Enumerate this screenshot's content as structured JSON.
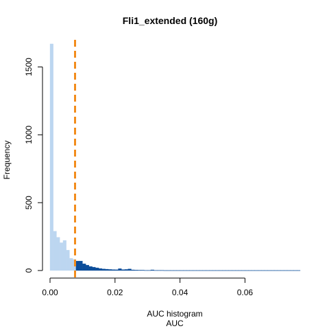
{
  "chart_data": {
    "type": "bar",
    "title": "Fli1_extended (160g)",
    "xlabel": "AUC",
    "xsublabel": "AUC histogram",
    "ylabel": "Frequency",
    "xlim": [
      0,
      0.077
    ],
    "ylim": [
      0,
      1700
    ],
    "x_ticks": [
      0.0,
      0.02,
      0.04,
      0.06
    ],
    "x_tick_labels": [
      "0.00",
      "0.02",
      "0.04",
      "0.06"
    ],
    "y_ticks": [
      0,
      500,
      1000,
      1500
    ],
    "y_tick_labels": [
      "0",
      "500",
      "1000",
      "1500"
    ],
    "bin_width": 0.001,
    "threshold": 0.0077,
    "values": [
      1670,
      290,
      245,
      205,
      222,
      150,
      90,
      82,
      70,
      70,
      50,
      40,
      30,
      25,
      20,
      15,
      12,
      10,
      8,
      7,
      6,
      14,
      7,
      8,
      12,
      5,
      4,
      3,
      3,
      2,
      2,
      5,
      2,
      2,
      2,
      1,
      1,
      1,
      1,
      1,
      1,
      1,
      1,
      1,
      1,
      1,
      1,
      1,
      1,
      1,
      1,
      1,
      1,
      1,
      1,
      1,
      1,
      1,
      1,
      1,
      1,
      1,
      1,
      1,
      1,
      1,
      1,
      1,
      1,
      1,
      1,
      1,
      1,
      1,
      1,
      1,
      1
    ],
    "grid": false,
    "colors": {
      "below_threshold": "#bcd6f0",
      "above_threshold": "#0d4e9a",
      "threshold_line": "#f28c1c",
      "axis": "#000000"
    }
  }
}
